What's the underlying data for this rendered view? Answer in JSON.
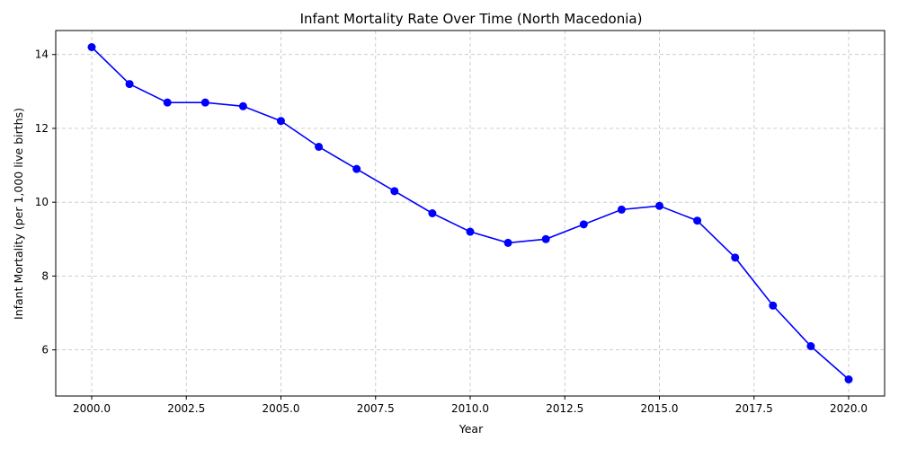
{
  "chart_data": {
    "type": "line",
    "title": "Infant Mortality Rate Over Time (North Macedonia)",
    "xlabel": "Year",
    "ylabel": "Infant Mortality (per 1,000 live births)",
    "xlim": [
      1999.05,
      2020.95
    ],
    "ylim": [
      4.75,
      14.65
    ],
    "xticks": [
      2000.0,
      2002.5,
      2005.0,
      2007.5,
      2010.0,
      2012.5,
      2015.0,
      2017.5,
      2020.0
    ],
    "xtick_labels": [
      "2000.0",
      "2002.5",
      "2005.0",
      "2007.5",
      "2010.0",
      "2012.5",
      "2015.0",
      "2017.5",
      "2020.0"
    ],
    "yticks": [
      6,
      8,
      10,
      12,
      14
    ],
    "ytick_labels": [
      "6",
      "8",
      "10",
      "12",
      "14"
    ],
    "grid": true,
    "series": [
      {
        "color": "#0000ff",
        "marker": "circle",
        "x": [
          2000,
          2001,
          2002,
          2003,
          2004,
          2005,
          2006,
          2007,
          2008,
          2009,
          2010,
          2011,
          2012,
          2013,
          2014,
          2015,
          2016,
          2017,
          2018,
          2019,
          2020
        ],
        "y": [
          14.2,
          13.2,
          12.7,
          12.7,
          12.6,
          12.2,
          11.5,
          10.9,
          10.3,
          9.7,
          9.2,
          8.9,
          9.0,
          9.4,
          9.8,
          9.9,
          9.5,
          8.5,
          7.2,
          6.1,
          5.2
        ]
      }
    ]
  }
}
